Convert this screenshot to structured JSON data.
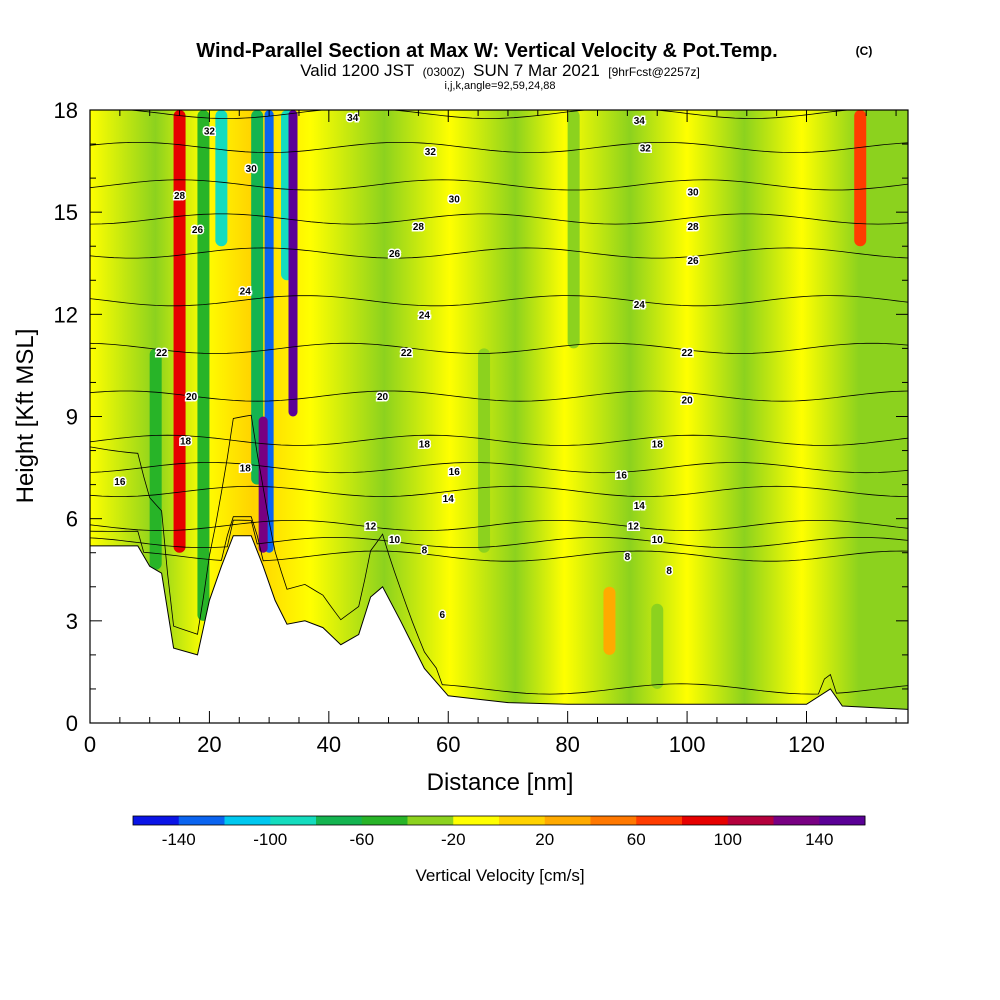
{
  "title": {
    "main": "Wind-Parallel Section at Max W: Vertical Velocity & Pot.Temp.",
    "main_mark": "(C)",
    "valid_a": "Valid 1200 JST",
    "valid_b": "(0300Z)",
    "valid_c": "SUN 7 Mar 2021",
    "valid_d": "[9hrFcst@2257z]",
    "params": "i,j,k,angle=92,59,24,88"
  },
  "chart_data": {
    "type": "heatmap",
    "xlabel": "Distance [nm]",
    "ylabel": "Height [Kft MSL]",
    "xlim": [
      0,
      137
    ],
    "ylim": [
      0,
      18
    ],
    "x_ticks": [
      0,
      20,
      40,
      60,
      80,
      100,
      120
    ],
    "y_ticks": [
      0,
      3,
      6,
      9,
      12,
      15,
      18
    ],
    "grid": false,
    "colorbar": {
      "label": "Vertical Velocity [cm/s]",
      "levels": [
        -160,
        -140,
        -120,
        -100,
        -80,
        -60,
        -40,
        -20,
        0,
        20,
        40,
        60,
        80,
        100,
        120,
        140,
        160
      ],
      "tick_labels": [
        -140,
        -100,
        -60,
        -20,
        20,
        60,
        100,
        140
      ],
      "colors": [
        "#0a14e6",
        "#0a64f0",
        "#00c8f0",
        "#14dcbe",
        "#14b450",
        "#28b428",
        "#8cd21e",
        "#ffff00",
        "#ffd200",
        "#ffaa00",
        "#ff7800",
        "#ff3c00",
        "#e60000",
        "#b4003c",
        "#780082",
        "#5a0096"
      ]
    },
    "terrain_kft": [
      [
        0,
        5.2
      ],
      [
        8,
        5.2
      ],
      [
        10,
        4.6
      ],
      [
        12,
        4.4
      ],
      [
        14,
        2.2
      ],
      [
        18,
        2.0
      ],
      [
        20,
        3.6
      ],
      [
        22,
        4.6
      ],
      [
        24,
        5.5
      ],
      [
        27,
        5.5
      ],
      [
        29,
        4.6
      ],
      [
        31,
        3.6
      ],
      [
        33,
        2.9
      ],
      [
        36,
        3.0
      ],
      [
        39,
        2.8
      ],
      [
        42,
        2.3
      ],
      [
        45,
        2.6
      ],
      [
        47,
        3.7
      ],
      [
        49,
        4.0
      ],
      [
        52,
        3.0
      ],
      [
        56,
        1.6
      ],
      [
        60,
        0.8
      ],
      [
        65,
        0.7
      ],
      [
        70,
        0.6
      ],
      [
        80,
        0.55
      ],
      [
        90,
        0.55
      ],
      [
        100,
        0.55
      ],
      [
        110,
        0.55
      ],
      [
        120,
        0.55
      ],
      [
        124,
        1.0
      ],
      [
        126,
        0.5
      ],
      [
        137,
        0.4
      ]
    ],
    "theta_contours": [
      {
        "level": "6",
        "base_kft": 1.0
      },
      {
        "level": "8",
        "base_kft": 4.9
      },
      {
        "level": "10",
        "base_kft": 5.3
      },
      {
        "level": "12",
        "base_kft": 5.8
      },
      {
        "level": "14",
        "base_kft": 6.8
      },
      {
        "level": "16",
        "base_kft": 7.5
      },
      {
        "level": "18",
        "base_kft": 8.3
      },
      {
        "level": "20",
        "base_kft": 9.6
      },
      {
        "level": "22",
        "base_kft": 11.0
      },
      {
        "level": "24",
        "base_kft": 12.4
      },
      {
        "level": "26",
        "base_kft": 13.8
      },
      {
        "level": "28",
        "base_kft": 14.8
      },
      {
        "level": "30",
        "base_kft": 15.8
      },
      {
        "level": "32",
        "base_kft": 16.9
      },
      {
        "level": "34",
        "base_kft": 17.9
      }
    ],
    "contour_labels": [
      {
        "text": "34",
        "x": 44,
        "y": 17.8
      },
      {
        "text": "34",
        "x": 92,
        "y": 17.7
      },
      {
        "text": "32",
        "x": 20,
        "y": 17.4
      },
      {
        "text": "32",
        "x": 57,
        "y": 16.8
      },
      {
        "text": "32",
        "x": 93,
        "y": 16.9
      },
      {
        "text": "30",
        "x": 27,
        "y": 16.3
      },
      {
        "text": "30",
        "x": 61,
        "y": 15.4
      },
      {
        "text": "30",
        "x": 101,
        "y": 15.6
      },
      {
        "text": "28",
        "x": 15,
        "y": 15.5
      },
      {
        "text": "28",
        "x": 55,
        "y": 14.6
      },
      {
        "text": "28",
        "x": 101,
        "y": 14.6
      },
      {
        "text": "26",
        "x": 18,
        "y": 14.5
      },
      {
        "text": "26",
        "x": 51,
        "y": 13.8
      },
      {
        "text": "26",
        "x": 101,
        "y": 13.6
      },
      {
        "text": "24",
        "x": 26,
        "y": 12.7
      },
      {
        "text": "24",
        "x": 56,
        "y": 12.0
      },
      {
        "text": "24",
        "x": 92,
        "y": 12.3
      },
      {
        "text": "22",
        "x": 12,
        "y": 10.9
      },
      {
        "text": "22",
        "x": 53,
        "y": 10.9
      },
      {
        "text": "22",
        "x": 100,
        "y": 10.9
      },
      {
        "text": "20",
        "x": 17,
        "y": 9.6
      },
      {
        "text": "20",
        "x": 49,
        "y": 9.6
      },
      {
        "text": "20",
        "x": 100,
        "y": 9.5
      },
      {
        "text": "18",
        "x": 16,
        "y": 8.3
      },
      {
        "text": "18",
        "x": 56,
        "y": 8.2
      },
      {
        "text": "18",
        "x": 95,
        "y": 8.2
      },
      {
        "text": "18",
        "x": 26,
        "y": 7.5
      },
      {
        "text": "16",
        "x": 5,
        "y": 7.1
      },
      {
        "text": "16",
        "x": 61,
        "y": 7.4
      },
      {
        "text": "16",
        "x": 89,
        "y": 7.3
      },
      {
        "text": "14",
        "x": 60,
        "y": 6.6
      },
      {
        "text": "14",
        "x": 92,
        "y": 6.4
      },
      {
        "text": "12",
        "x": 47,
        "y": 5.8
      },
      {
        "text": "12",
        "x": 91,
        "y": 5.8
      },
      {
        "text": "10",
        "x": 51,
        "y": 5.4
      },
      {
        "text": "10",
        "x": 95,
        "y": 5.4
      },
      {
        "text": "8",
        "x": 56,
        "y": 5.1
      },
      {
        "text": "8",
        "x": 90,
        "y": 4.9
      },
      {
        "text": "8",
        "x": 97,
        "y": 4.5
      },
      {
        "text": "6",
        "x": 59,
        "y": 3.2
      }
    ],
    "velocity_features": [
      {
        "x": 30,
        "y_range": [
          5,
          18
        ],
        "value": -140
      },
      {
        "x": 28,
        "y_range": [
          7,
          18
        ],
        "value": -80
      },
      {
        "x": 33,
        "y_range": [
          13,
          18
        ],
        "value": -100
      },
      {
        "x": 29,
        "y_range": [
          5,
          9
        ],
        "value": 120
      },
      {
        "x": 34,
        "y_range": [
          9,
          18
        ],
        "value": 140
      },
      {
        "x": 15,
        "y_range": [
          5,
          18
        ],
        "value": 80
      },
      {
        "x": 11,
        "y_range": [
          4.5,
          11
        ],
        "value": -60
      },
      {
        "x": 19,
        "y_range": [
          3,
          18
        ],
        "value": -60
      },
      {
        "x": 22,
        "y_range": [
          14,
          18
        ],
        "value": -100
      },
      {
        "x": 66,
        "y_range": [
          5,
          11
        ],
        "value": -40
      },
      {
        "x": 81,
        "y_range": [
          11,
          18
        ],
        "value": -40
      },
      {
        "x": 87,
        "y_range": [
          2,
          4
        ],
        "value": 30
      },
      {
        "x": 95,
        "y_range": [
          1,
          3.5
        ],
        "value": -40
      },
      {
        "x": 129,
        "y_range": [
          14,
          18
        ],
        "value": 60
      }
    ]
  }
}
